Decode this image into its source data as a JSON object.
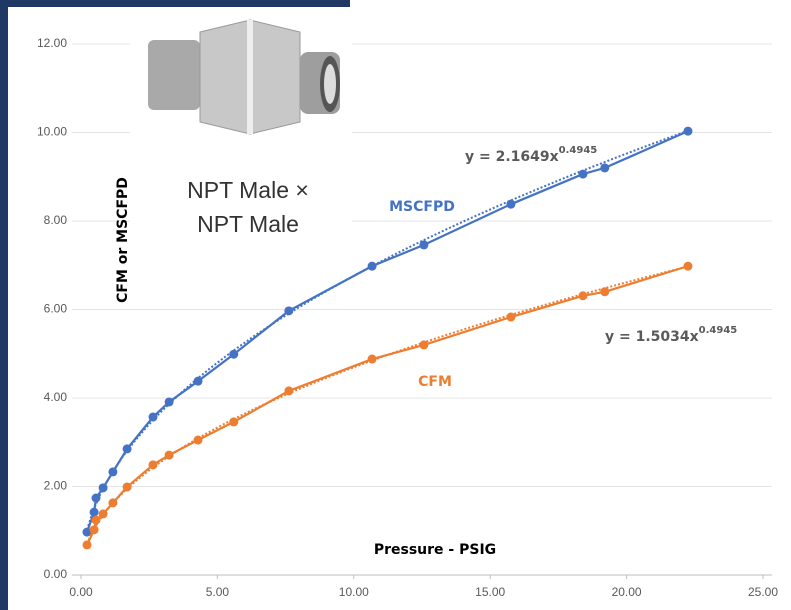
{
  "chart_data": {
    "type": "line",
    "y_label": "CFM or MSCFPD",
    "x_label": "Pressure - PSIG",
    "image_caption": [
      "NPT Male ×",
      "NPT Male"
    ],
    "xlim": [
      0,
      25
    ],
    "xticks": [
      {
        "value": 0,
        "label": "0.00"
      },
      {
        "value": 5,
        "label": "5.00"
      },
      {
        "value": 10,
        "label": "10.00"
      },
      {
        "value": 15,
        "label": "15.00"
      },
      {
        "value": 20,
        "label": "20.00"
      },
      {
        "value": 25,
        "label": "25.00"
      }
    ],
    "ylim": [
      0,
      12
    ],
    "yticks": [
      {
        "value": 0,
        "label": "0.00"
      },
      {
        "value": 2,
        "label": "2.00"
      },
      {
        "value": 4,
        "label": "4.00"
      },
      {
        "value": 6,
        "label": "6.00"
      },
      {
        "value": 8,
        "label": "8.00"
      },
      {
        "value": 10,
        "label": "10.00"
      },
      {
        "value": 12,
        "label": "12.00"
      }
    ],
    "grid": true,
    "x": [
      0.22,
      0.48,
      0.55,
      0.81,
      1.17,
      1.69,
      2.64,
      3.23,
      4.29,
      5.6,
      7.62,
      10.67,
      12.57,
      15.76,
      18.4,
      19.2,
      22.25
    ],
    "series": [
      {
        "name": "MSCFPD",
        "color": "#4472c4",
        "values": [
          0.97,
          1.42,
          1.74,
          1.97,
          2.33,
          2.85,
          3.57,
          3.91,
          4.38,
          4.99,
          5.97,
          6.98,
          7.46,
          8.38,
          9.06,
          9.2,
          10.03
        ],
        "trendline": {
          "equation": "y = 2.1649x",
          "coefficient": 2.1649,
          "exponent": 0.4945
        }
      },
      {
        "name": "CFM",
        "color": "#ed7d31",
        "values": [
          0.68,
          1.02,
          1.24,
          1.38,
          1.63,
          1.99,
          2.49,
          2.71,
          3.05,
          3.46,
          4.16,
          4.88,
          5.2,
          5.83,
          6.31,
          6.4,
          6.98
        ],
        "trendline": {
          "equation": "y = 1.5034x",
          "coefficient": 1.5034,
          "exponent": 0.4945
        }
      }
    ]
  }
}
